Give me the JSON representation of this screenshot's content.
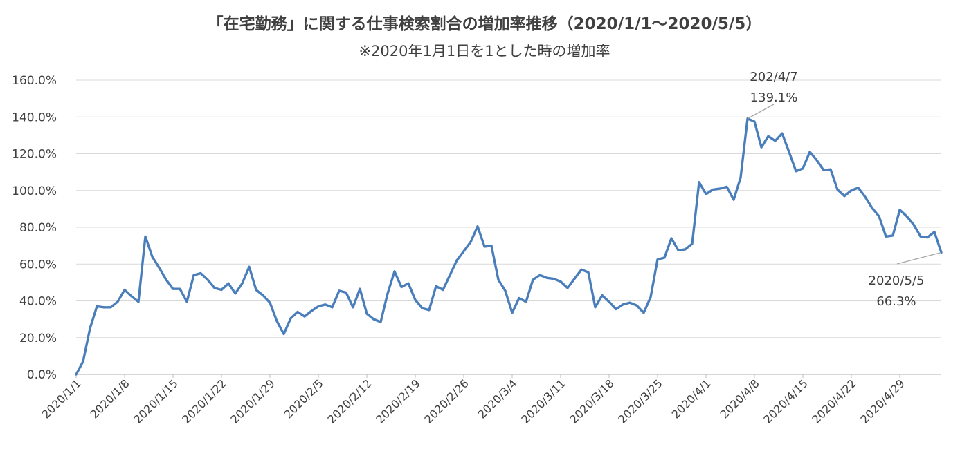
{
  "chart_data": {
    "type": "line",
    "title": "「在宅勤務」に関する仕事検索割合の増加率推移（2020/1/1〜2020/5/5）",
    "subtitle": "※2020年1月1日を1とした時の増加率",
    "xlabel": "",
    "ylabel": "",
    "ylim": [
      0,
      160
    ],
    "yticks": [
      "0.0%",
      "20.0%",
      "40.0%",
      "60.0%",
      "80.0%",
      "100.0%",
      "120.0%",
      "140.0%",
      "160.0%"
    ],
    "x_tick_labels": [
      "2020/1/1",
      "2020/1/8",
      "2020/1/15",
      "2020/1/22",
      "2020/1/29",
      "2020/2/5",
      "2020/2/12",
      "2020/2/19",
      "2020/2/26",
      "2020/3/4",
      "2020/3/11",
      "2020/3/18",
      "2020/3/25",
      "2020/4/1",
      "2020/4/8",
      "2020/4/15",
      "2020/4/22",
      "2020/4/29"
    ],
    "grid": true,
    "color": "#4a7ebb",
    "start_date": "2020-01-01",
    "series": [
      {
        "name": "",
        "values": [
          0.0,
          7,
          25,
          37,
          36.5,
          36.5,
          39.5,
          46,
          42.5,
          39.5,
          75,
          64,
          58,
          51.5,
          46.5,
          46.5,
          39.5,
          54,
          55,
          51.5,
          47,
          46,
          49.5,
          44,
          49.5,
          58.5,
          46,
          43,
          39,
          29,
          22,
          30.5,
          34,
          31.5,
          34.5,
          37,
          38,
          36.5,
          45.5,
          44.5,
          36.5,
          46.5,
          33,
          30,
          28.5,
          44,
          56,
          47.5,
          49.5,
          40.5,
          36,
          35,
          48,
          46,
          54,
          62,
          67,
          72,
          80.5,
          69.5,
          70,
          51.5,
          45.5,
          33.5,
          41.5,
          39.5,
          51.5,
          54,
          52.5,
          52,
          50.5,
          47,
          52,
          57,
          55.5,
          36.5,
          43,
          39.5,
          35.5,
          38,
          39,
          37.5,
          33.5,
          42,
          62.5,
          63.5,
          74,
          67.5,
          68,
          71,
          104.5,
          98,
          100.5,
          101,
          102,
          95,
          107,
          139.1,
          137.5,
          123.5,
          129.5,
          127,
          131,
          121,
          110.5,
          112,
          121,
          116.5,
          111,
          111.5,
          100.5,
          97,
          100,
          101.5,
          96.5,
          90.5,
          86,
          75,
          75.5,
          89.5,
          86,
          81.5,
          75,
          74.5,
          77.5,
          66.3
        ]
      }
    ],
    "annotations": [
      {
        "label_line1": "202/4/7",
        "label_line2": "139.1%",
        "value": 139.1
      },
      {
        "label_line1": "2020/5/5",
        "label_line2": "66.3%",
        "value": 66.3
      }
    ]
  }
}
